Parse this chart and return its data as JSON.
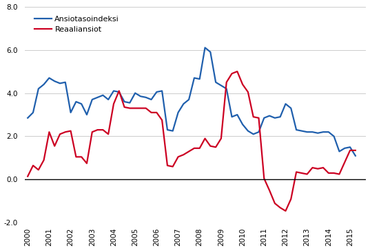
{
  "legend_labels": [
    "Ansiotasoindeksi",
    "Reaaliansiot"
  ],
  "line1_color": "#1F5FAD",
  "line2_color": "#CC0022",
  "background_color": "#FFFFFF",
  "grid_color": "#CCCCCC",
  "ylim": [
    -2.0,
    8.0
  ],
  "yticks": [
    -2.0,
    0.0,
    2.0,
    4.0,
    6.0,
    8.0
  ],
  "xtick_labels": [
    "2000",
    "2001",
    "2002",
    "2003",
    "2004",
    "2005",
    "2006",
    "2007",
    "2008",
    "2009",
    "2010",
    "2011",
    "2012",
    "2013",
    "2014",
    "2015"
  ],
  "ansiotasoindeksi": [
    2.85,
    3.1,
    4.2,
    4.4,
    4.7,
    4.55,
    4.45,
    4.5,
    3.1,
    3.6,
    3.5,
    3.0,
    3.7,
    3.8,
    3.9,
    3.7,
    4.1,
    4.05,
    3.6,
    3.55,
    4.0,
    3.85,
    3.8,
    3.7,
    4.05,
    4.1,
    2.3,
    2.25,
    3.1,
    3.5,
    3.7,
    4.7,
    4.65,
    6.1,
    5.9,
    4.5,
    4.35,
    4.2,
    2.9,
    3.0,
    2.55,
    2.25,
    2.1,
    2.2,
    2.85,
    2.95,
    2.85,
    2.9,
    3.5,
    3.3,
    2.3,
    2.25,
    2.2,
    2.2,
    2.15,
    2.2,
    2.2,
    2.0,
    1.3,
    1.45,
    1.5,
    1.1
  ],
  "reaaliansiot": [
    0.15,
    0.65,
    0.45,
    0.9,
    2.2,
    1.55,
    2.1,
    2.2,
    2.25,
    1.05,
    1.05,
    0.75,
    2.2,
    2.3,
    2.3,
    2.1,
    3.5,
    4.1,
    3.35,
    3.3,
    3.3,
    3.3,
    3.3,
    3.1,
    3.1,
    2.75,
    0.65,
    0.6,
    1.05,
    1.15,
    1.3,
    1.45,
    1.45,
    1.9,
    1.55,
    1.5,
    1.9,
    4.5,
    4.9,
    5.0,
    4.4,
    4.05,
    2.9,
    2.85,
    0.05,
    -0.5,
    -1.1,
    -1.3,
    -1.45,
    -0.9,
    0.35,
    0.3,
    0.25,
    0.55,
    0.5,
    0.55,
    0.3,
    0.3,
    0.25,
    0.8,
    1.35,
    1.35
  ]
}
